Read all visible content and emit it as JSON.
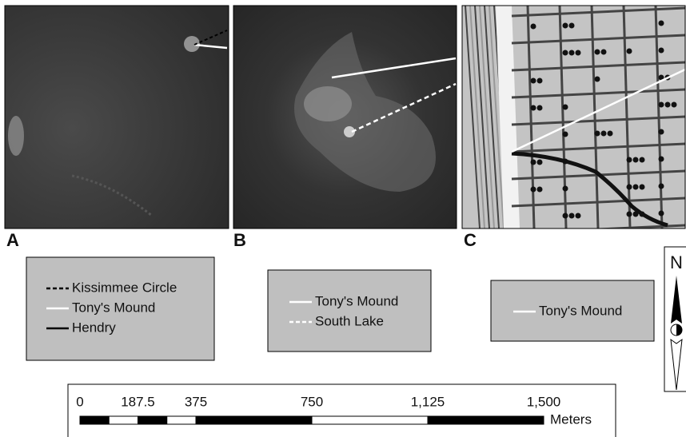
{
  "panels": [
    {
      "label": "A",
      "legend": [
        {
          "name": "Kissimmee Circle",
          "color": "#000000",
          "dashed": true
        },
        {
          "name": "Tony's Mound",
          "color": "#ffffff",
          "dashed": false
        },
        {
          "name": "Hendry",
          "color": "#000000",
          "dashed": false
        }
      ]
    },
    {
      "label": "B",
      "legend": [
        {
          "name": "Tony's Mound",
          "color": "#ffffff",
          "dashed": false
        },
        {
          "name": "South Lake",
          "color": "#ffffff",
          "dashed": true
        }
      ]
    },
    {
      "label": "C",
      "legend": [
        {
          "name": "Tony's Mound",
          "color": "#ffffff",
          "dashed": false
        }
      ]
    }
  ],
  "north": "N",
  "scale_bar": {
    "xlim": [
      0,
      1500
    ],
    "ticks": [
      0,
      187.5,
      375,
      750,
      {
        "value": 1125,
        "label": "1,125"
      },
      {
        "value": 1500,
        "label": "1,500"
      }
    ],
    "unit": "Meters"
  }
}
